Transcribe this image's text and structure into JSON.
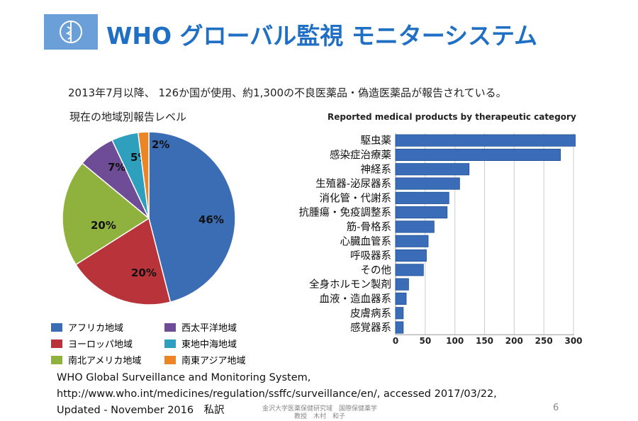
{
  "header": {
    "title": "WHO グローバル監視 モニターシステム",
    "intro": "2013年7月以降、 126か国が使用、約1,300の不良医薬品・偽造医薬品が報告されている。"
  },
  "chart_data": [
    {
      "type": "pie",
      "title": "現在の地域別報告レベル",
      "slices": [
        {
          "label": "アフリカ地域",
          "value": 46,
          "display": "46%",
          "color": "#3b6db5"
        },
        {
          "label": "ヨーロッパ地域",
          "value": 20,
          "display": "20%",
          "color": "#b8343a"
        },
        {
          "label": "南北アメリカ地域",
          "value": 20,
          "display": "20%",
          "color": "#8fb23e"
        },
        {
          "label": "西太平洋地域",
          "value": 7,
          "display": "7%",
          "color": "#6e4c96"
        },
        {
          "label": "東地中海地域",
          "value": 5,
          "display": "5%",
          "color": "#2ea0be"
        },
        {
          "label": "南東アジア地域",
          "value": 2,
          "display": "2%",
          "color": "#ec8526"
        }
      ],
      "legend": "bottom"
    },
    {
      "type": "bar",
      "orientation": "horizontal",
      "title": "Reported medical products by therapeutic category",
      "categories": [
        "駆虫薬",
        "感染症治療薬",
        "神経系",
        "生殖器-泌尿器系",
        "消化管・代謝系",
        "抗腫瘍・免疫調整系",
        "筋-骨格系",
        "心臓血管系",
        "呼吸器系",
        "その他",
        "全身ホルモン製剤",
        "血液・造血器系",
        "皮膚病系",
        "感覚器系"
      ],
      "values": [
        303,
        278,
        124,
        108,
        90,
        87,
        65,
        55,
        52,
        47,
        22,
        18,
        13,
        13
      ],
      "xlim": [
        0,
        310
      ],
      "xticks": [
        "0",
        "50",
        "100",
        "150",
        "200",
        "250",
        "300"
      ],
      "grid": true,
      "color": "#3a6cb8"
    }
  ],
  "footer": {
    "lines": [
      "WHO Global Surveillance and Monitoring System,",
      "http://www.who.int/medicines/regulation/ssffc/surveillance/en/, accessed 2017/03/22,",
      "Updated - November 2016　私訳"
    ],
    "institution": "金沢大学医薬保健研究域　国際保健薬学",
    "author": "教授　木村　和子",
    "page": "6"
  }
}
